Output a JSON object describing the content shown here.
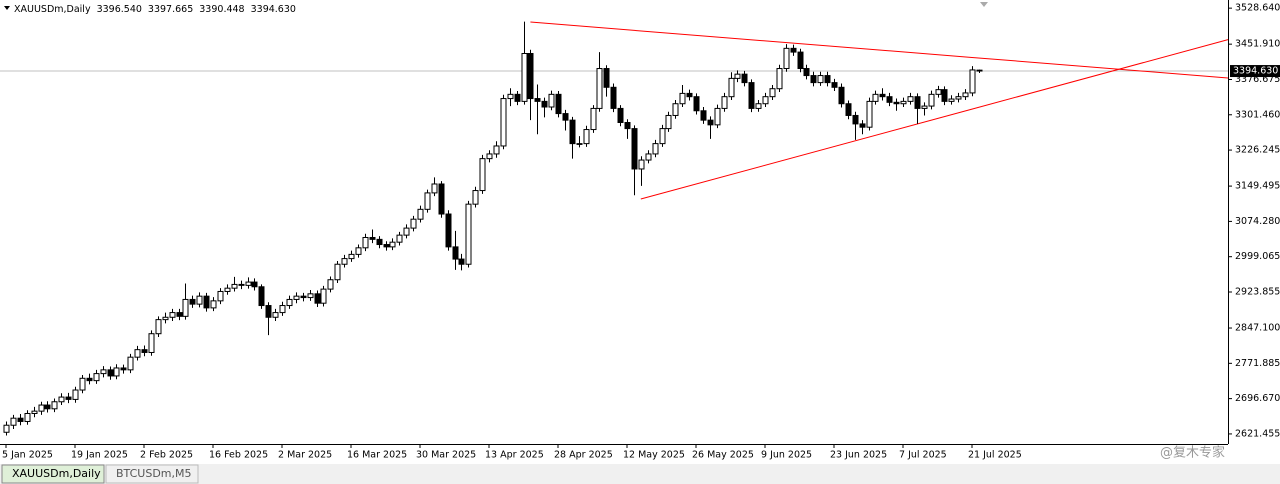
{
  "chart_data": {
    "type": "candlestick",
    "header": {
      "symbol": "XAUUSDm,Daily",
      "ohlc": [
        {
          "value": 3396.54,
          "label": "3396.540"
        },
        {
          "value": 3397.665,
          "label": "3397.665"
        },
        {
          "value": 3390.448,
          "label": "3390.448"
        },
        {
          "value": 3394.63,
          "label": "3394.630"
        }
      ]
    },
    "categories": [
      "5 Jan 2025",
      null,
      null,
      null,
      null,
      null,
      null,
      null,
      null,
      null,
      "19 Jan 2025",
      null,
      null,
      null,
      null,
      null,
      null,
      null,
      null,
      null,
      "2 Feb 2025",
      null,
      null,
      null,
      null,
      null,
      null,
      null,
      null,
      null,
      "16 Feb 2025",
      null,
      null,
      null,
      null,
      null,
      null,
      null,
      null,
      null,
      "2 Mar 2025",
      null,
      null,
      null,
      null,
      null,
      null,
      null,
      null,
      null,
      "16 Mar 2025",
      null,
      null,
      null,
      null,
      null,
      null,
      null,
      null,
      null,
      "30 Mar 2025",
      null,
      null,
      null,
      null,
      null,
      null,
      null,
      null,
      null,
      "13 Apr 2025",
      null,
      null,
      null,
      null,
      null,
      null,
      null,
      null,
      null,
      "28 Apr 2025",
      null,
      null,
      null,
      null,
      null,
      null,
      null,
      null,
      null,
      "12 May 2025",
      null,
      null,
      null,
      null,
      null,
      null,
      null,
      null,
      null,
      "26 May 2025",
      null,
      null,
      null,
      null,
      null,
      null,
      null,
      null,
      null,
      "9 Jun 2025",
      null,
      null,
      null,
      null,
      null,
      null,
      null,
      null,
      null,
      "23 Jun 2025",
      null,
      null,
      null,
      null,
      null,
      null,
      null,
      null,
      null,
      "7 Jul 2025",
      null,
      null,
      null,
      null,
      null,
      null,
      null,
      null,
      null,
      "21 Jul 2025",
      null
    ],
    "open": [
      2625,
      2640,
      2655,
      2648,
      2665,
      2670,
      2683,
      2675,
      2690,
      2700,
      2695,
      2715,
      2740,
      2735,
      2750,
      2758,
      2745,
      2762,
      2758,
      2785,
      2801,
      2795,
      2835,
      2865,
      2870,
      2880,
      2872,
      2908,
      2898,
      2915,
      2890,
      2905,
      2925,
      2932,
      2940,
      2938,
      2945,
      2935,
      2895,
      2870,
      2880,
      2895,
      2908,
      2915,
      2912,
      2920,
      2900,
      2930,
      2950,
      2983,
      2995,
      3004,
      3018,
      3040,
      3036,
      3025,
      3020,
      3030,
      3045,
      3060,
      3079,
      3100,
      3135,
      3154,
      3090,
      3020,
      2994,
      2983,
      3111,
      3140,
      3208,
      3218,
      3235,
      3336,
      3345,
      3330,
      3432,
      3336,
      3330,
      3318,
      3345,
      3304,
      3290,
      3240,
      3240,
      3270,
      3315,
      3400,
      3360,
      3315,
      3285,
      3272,
      3186,
      3205,
      3218,
      3240,
      3272,
      3300,
      3325,
      3347,
      3340,
      3310,
      3290,
      3280,
      3315,
      3340,
      3379,
      3388,
      3370,
      3315,
      3325,
      3340,
      3357,
      3400,
      3443,
      3435,
      3400,
      3385,
      3370,
      3385,
      3370,
      3360,
      3325,
      3300,
      3282,
      3275,
      3330,
      3345,
      3340,
      3328,
      3325,
      3330,
      3340,
      3315,
      3320,
      3345,
      3355,
      3330,
      3335,
      3340,
      3348,
      3396.54
    ],
    "high": [
      2648,
      2662,
      2664,
      2672,
      2679,
      2690,
      2691,
      2697,
      2708,
      2709,
      2722,
      2747,
      2750,
      2758,
      2766,
      2765,
      2770,
      2769,
      2792,
      2809,
      2810,
      2842,
      2872,
      2880,
      2888,
      2888,
      2942,
      2916,
      2923,
      2922,
      2913,
      2932,
      2940,
      2956,
      2948,
      2955,
      2953,
      2940,
      2902,
      2888,
      2903,
      2916,
      2923,
      2922,
      2928,
      2927,
      2937,
      2957,
      2990,
      3003,
      3012,
      3025,
      3048,
      3057,
      3043,
      3032,
      3038,
      3052,
      3068,
      3086,
      3108,
      3142,
      3168,
      3160,
      3098,
      3054,
      3005,
      3118,
      3148,
      3216,
      3226,
      3245,
      3344,
      3358,
      3352,
      3500,
      3440,
      3366,
      3338,
      3353,
      3352,
      3312,
      3297,
      3256,
      3278,
      3322,
      3435,
      3407,
      3368,
      3322,
      3292,
      3279,
      3213,
      3226,
      3248,
      3280,
      3308,
      3333,
      3365,
      3355,
      3347,
      3318,
      3298,
      3323,
      3348,
      3392,
      3396,
      3395,
      3377,
      3333,
      3348,
      3365,
      3408,
      3452,
      3451,
      3442,
      3408,
      3393,
      3393,
      3393,
      3378,
      3368,
      3332,
      3308,
      3290,
      3338,
      3353,
      3358,
      3348,
      3336,
      3338,
      3348,
      3347,
      3328,
      3353,
      3363,
      3362,
      3343,
      3348,
      3356,
      3405,
      3397.665
    ],
    "low": [
      2618,
      2632,
      2640,
      2641,
      2657,
      2662,
      2667,
      2668,
      2683,
      2687,
      2688,
      2708,
      2727,
      2728,
      2742,
      2737,
      2738,
      2750,
      2751,
      2778,
      2787,
      2788,
      2828,
      2857,
      2862,
      2864,
      2865,
      2890,
      2891,
      2882,
      2883,
      2898,
      2918,
      2925,
      2930,
      2931,
      2927,
      2888,
      2832,
      2862,
      2873,
      2888,
      2900,
      2904,
      2905,
      2892,
      2893,
      2923,
      2943,
      2976,
      2988,
      2997,
      3011,
      3028,
      3017,
      3012,
      3013,
      3023,
      3038,
      3053,
      3072,
      3093,
      3128,
      3082,
      3012,
      2971,
      2970,
      2976,
      3104,
      3133,
      3200,
      3210,
      3228,
      3320,
      3322,
      3323,
      3290,
      3260,
      3296,
      3311,
      3296,
      3268,
      3208,
      3232,
      3233,
      3263,
      3308,
      3340,
      3307,
      3277,
      3250,
      3130,
      3150,
      3198,
      3211,
      3233,
      3265,
      3293,
      3318,
      3332,
      3302,
      3282,
      3250,
      3273,
      3308,
      3333,
      3371,
      3362,
      3307,
      3308,
      3318,
      3333,
      3350,
      3393,
      3427,
      3392,
      3377,
      3362,
      3363,
      3362,
      3352,
      3317,
      3292,
      3248,
      3260,
      3268,
      3323,
      3332,
      3320,
      3310,
      3318,
      3323,
      3282,
      3300,
      3313,
      3338,
      3322,
      3323,
      3328,
      3333,
      3341,
      3390.448
    ],
    "close": [
      2640,
      2655,
      2648,
      2665,
      2670,
      2683,
      2675,
      2690,
      2700,
      2695,
      2715,
      2740,
      2735,
      2750,
      2758,
      2745,
      2762,
      2758,
      2785,
      2801,
      2795,
      2835,
      2865,
      2870,
      2880,
      2872,
      2908,
      2898,
      2915,
      2890,
      2905,
      2925,
      2932,
      2940,
      2938,
      2945,
      2935,
      2895,
      2870,
      2880,
      2895,
      2908,
      2915,
      2912,
      2920,
      2900,
      2930,
      2950,
      2983,
      2995,
      3004,
      3018,
      3040,
      3036,
      3025,
      3020,
      3030,
      3045,
      3060,
      3079,
      3100,
      3135,
      3154,
      3090,
      3020,
      2994,
      2983,
      3111,
      3140,
      3208,
      3218,
      3235,
      3336,
      3345,
      3330,
      3432,
      3336,
      3330,
      3318,
      3345,
      3304,
      3290,
      3240,
      3240,
      3270,
      3315,
      3400,
      3360,
      3315,
      3285,
      3272,
      3186,
      3205,
      3218,
      3240,
      3272,
      3300,
      3325,
      3347,
      3340,
      3310,
      3290,
      3280,
      3315,
      3340,
      3379,
      3388,
      3370,
      3315,
      3325,
      3340,
      3357,
      3400,
      3443,
      3435,
      3400,
      3385,
      3370,
      3385,
      3370,
      3360,
      3325,
      3300,
      3282,
      3275,
      3330,
      3345,
      3340,
      3328,
      3325,
      3330,
      3340,
      3315,
      3320,
      3345,
      3355,
      3330,
      3335,
      3340,
      3348,
      3397,
      3394.63
    ],
    "ylim": [
      2600,
      3546
    ],
    "yticks": [
      {
        "value": 2621.455,
        "label": "2621.455"
      },
      {
        "value": 2696.67,
        "label": "2696.670"
      },
      {
        "value": 2771.885,
        "label": "2771.885"
      },
      {
        "value": 2847.1,
        "label": "2847.100"
      },
      {
        "value": 2923.855,
        "label": "2923.855"
      },
      {
        "value": 2999.065,
        "label": "2999.065"
      },
      {
        "value": 3074.28,
        "label": "3074.280"
      },
      {
        "value": 3149.495,
        "label": "3149.495"
      },
      {
        "value": 3226.245,
        "label": "3226.245"
      },
      {
        "value": 3301.46,
        "label": "3301.460"
      },
      {
        "value": 3376.675,
        "label": "3376.675"
      },
      {
        "value": 3451.91,
        "label": "3451.910"
      },
      {
        "value": 3528.64,
        "label": "3528.640"
      }
    ],
    "current_price": {
      "value": 3394.63,
      "label": "3394.630"
    },
    "trendlines": [
      {
        "color": "#ff0000",
        "points": [
          [
            76,
            3499
          ],
          [
            140,
            3423.6
          ]
        ]
      },
      {
        "color": "#ff0000",
        "points": [
          [
            92,
            3122
          ],
          [
            140,
            3313.5
          ]
        ]
      }
    ],
    "up_color": "#ffffff",
    "down_color": "#000000",
    "tabs": [
      "XAUUSDm,Daily",
      "BTCUSDm,M5"
    ],
    "watermark": "@复木专家"
  }
}
